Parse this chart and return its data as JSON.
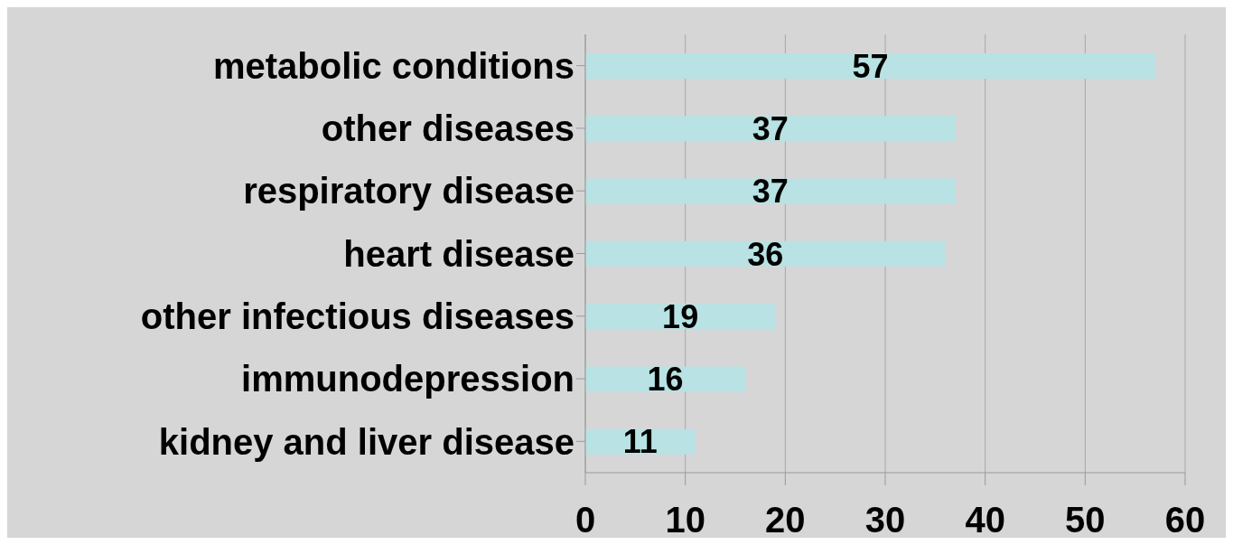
{
  "chart_data": {
    "type": "bar",
    "orientation": "horizontal",
    "categories": [
      "metabolic conditions",
      "other diseases",
      "respiratory disease",
      "heart disease",
      "other infectious diseases",
      "immunodepression",
      "kidney and liver disease"
    ],
    "values": [
      57,
      37,
      37,
      36,
      19,
      16,
      11
    ],
    "color": "#b8e2e4",
    "xlim": [
      0,
      60
    ],
    "xticks": [
      0,
      10,
      20,
      30,
      40,
      50,
      60
    ],
    "grid": "x",
    "data_labels": true
  }
}
